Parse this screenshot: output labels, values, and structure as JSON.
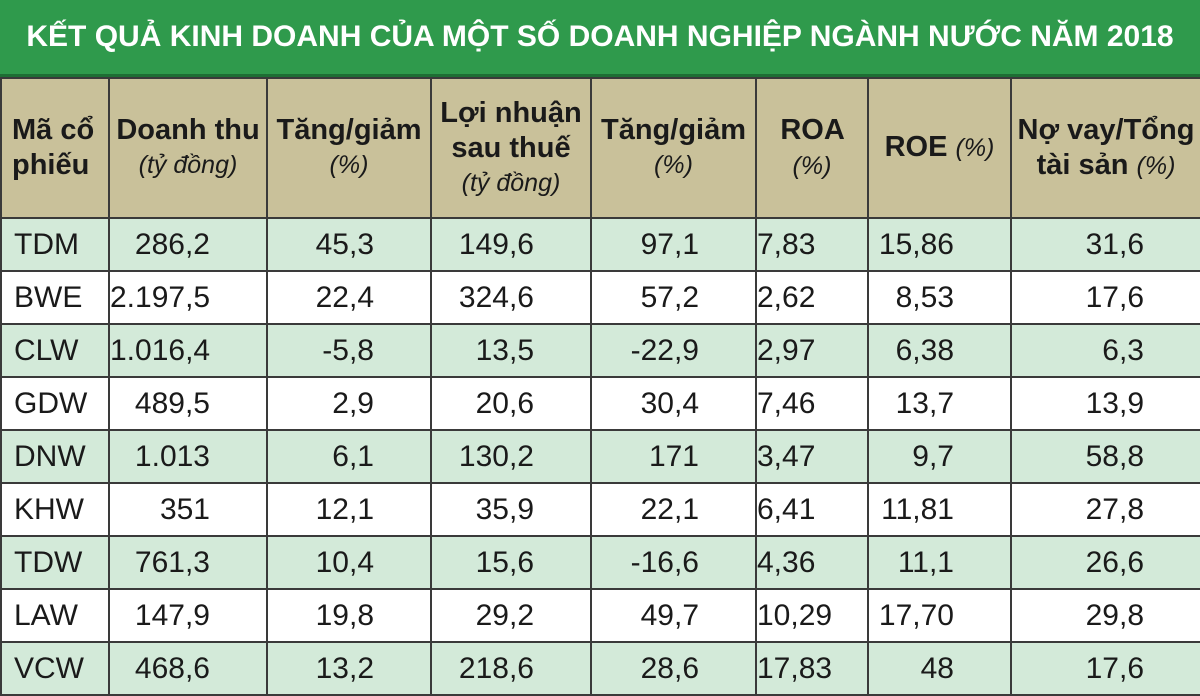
{
  "title": "KẾT QUẢ KINH DOANH CỦA MỘT SỐ DOANH NGHIỆP NGÀNH NƯỚC  NĂM 2018",
  "chart_data": {
    "type": "table",
    "title": "KẾT QUẢ KINH DOANH CỦA MỘT SỐ DOANH NGHIỆP NGÀNH NƯỚC  NĂM 2018",
    "headers": [
      {
        "label": "Mã cổ phiếu",
        "unit": ""
      },
      {
        "label": "Doanh thu",
        "unit": "(tỷ đồng)"
      },
      {
        "label": "Tăng/giảm",
        "unit": "(%)"
      },
      {
        "label": "Lợi nhuận sau thuế",
        "unit": "(tỷ đồng)"
      },
      {
        "label": "Tăng/giảm",
        "unit": "(%)"
      },
      {
        "label": "ROA",
        "unit": "(%)"
      },
      {
        "label": "ROE",
        "unit": "(%)"
      },
      {
        "label": "Nợ vay/Tổng tài sản",
        "unit": "(%)"
      }
    ],
    "rows": [
      [
        "TDM",
        "286,2",
        "45,3",
        "149,6",
        "97,1",
        "7,83",
        "15,86",
        "31,6"
      ],
      [
        "BWE",
        "2.197,5",
        "22,4",
        "324,6",
        "57,2",
        "2,62",
        "8,53",
        "17,6"
      ],
      [
        "CLW",
        "1.016,4",
        "-5,8",
        "13,5",
        "-22,9",
        "2,97",
        "6,38",
        "6,3"
      ],
      [
        "GDW",
        "489,5",
        "2,9",
        "20,6",
        "30,4",
        "7,46",
        "13,7",
        "13,9"
      ],
      [
        "DNW",
        "1.013",
        "6,1",
        "130,2",
        "171",
        "3,47",
        "9,7",
        "58,8"
      ],
      [
        "KHW",
        "351",
        "12,1",
        "35,9",
        "22,1",
        "6,41",
        "11,81",
        "27,8"
      ],
      [
        "TDW",
        "761,3",
        "10,4",
        "15,6",
        "-16,6",
        "4,36",
        "11,1",
        "26,6"
      ],
      [
        "LAW",
        "147,9",
        "19,8",
        "29,2",
        "49,7",
        "10,29",
        "17,70",
        "29,8"
      ],
      [
        "VCW",
        "468,6",
        "13,2",
        "218,6",
        "28,6",
        "17,83",
        "48",
        "17,6"
      ]
    ]
  },
  "header_lines": {
    "c0": [
      "Mã cổ",
      "phiếu"
    ],
    "c1": [
      "Doanh thu",
      "(tỷ đồng)"
    ],
    "c2": [
      "Tăng/giảm",
      "(%)"
    ],
    "c3": [
      "Lợi nhuận",
      "sau thuế",
      "(tỷ đồng)"
    ],
    "c4": [
      "Tăng/giảm",
      "(%)"
    ],
    "c5": [
      "ROA",
      "(%)"
    ],
    "c6": [
      "ROE",
      "(%)"
    ],
    "c7": [
      "Nợ vay/Tổng",
      "tài sản",
      "(%)"
    ]
  },
  "colors": {
    "title_bg": "#2f9a4c",
    "header_bg": "#c9c19a",
    "row_shaded": "#d3ead9",
    "row_plain": "#ffffff",
    "border": "#3a3a3a"
  }
}
